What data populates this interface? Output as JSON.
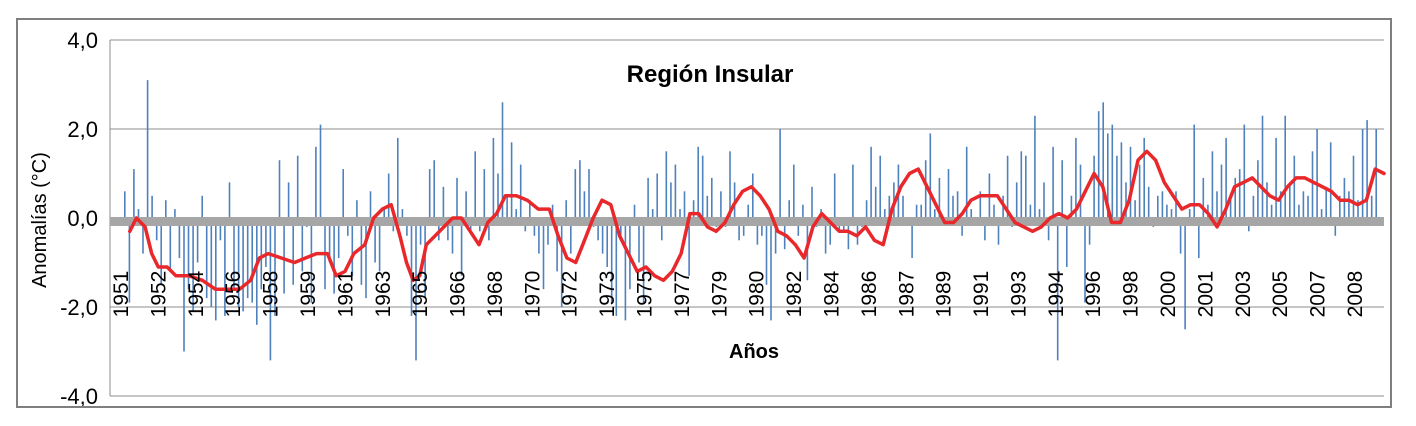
{
  "chart_data": {
    "type": "bar",
    "title": "Región Insular",
    "xlabel": "Años",
    "ylabel": "Anomalías (°C)",
    "ylim": [
      -4,
      4
    ],
    "y_ticks": [
      "4,0",
      "2,0",
      "0,0",
      "-2,0",
      "-4,0"
    ],
    "y_tick_values": [
      4,
      2,
      0,
      -2,
      -4
    ],
    "x_start_year": 1951,
    "x_end_year": 2009,
    "x_tick_labels": [
      "1951",
      "1952",
      "1954",
      "1956",
      "1958",
      "1959",
      "1961",
      "1963",
      "1965",
      "1966",
      "1968",
      "1970",
      "1972",
      "1973",
      "1975",
      "1977",
      "1979",
      "1980",
      "1982",
      "1984",
      "1986",
      "1987",
      "1989",
      "1991",
      "1993",
      "1994",
      "1996",
      "1998",
      "2000",
      "2001",
      "2003",
      "2005",
      "2007",
      "2008"
    ],
    "grid": true,
    "legend": "none",
    "series": [
      {
        "kind": "monthly bars",
        "color": "#4f81bd",
        "values": [
          0.6,
          -1.9,
          1.1,
          0.2,
          -0.8,
          3.1,
          0.5,
          -0.5,
          -1.5,
          0.4,
          -1.2,
          0.2,
          -0.9,
          -3.0,
          -1.6,
          -2.1,
          -1.0,
          0.5,
          -1.8,
          -2.0,
          -2.3,
          -0.5,
          -2.2,
          0.8,
          -1.6,
          -2.0,
          -2.1,
          -1.8,
          -1.9,
          -2.4,
          -1.6,
          -1.1,
          -3.2,
          -2.2,
          1.3,
          -1.7,
          0.8,
          -1.5,
          1.4,
          -1.2,
          -0.2,
          -1.9,
          1.6,
          2.1,
          -1.6,
          -1.0,
          -1.7,
          -0.9,
          1.1,
          -0.4,
          -1.3,
          0.4,
          -1.5,
          -1.8,
          0.6,
          -1.0,
          -1.2,
          0.2,
          1.0,
          -0.3,
          1.8,
          0.2,
          -0.4,
          -2.2,
          -3.2,
          -0.6,
          -1.8,
          1.1,
          1.3,
          -0.5,
          0.7,
          -0.5,
          -0.8,
          0.9,
          -1.3,
          0.6,
          -0.3,
          1.5,
          -0.3,
          1.1,
          -0.5,
          1.8,
          1.0,
          2.6,
          0.5,
          1.7,
          0.2,
          1.2,
          -0.3,
          0.4,
          -0.4,
          -0.8,
          -1.6,
          -0.6,
          0.3,
          -1.2,
          -2.0,
          0.4,
          -0.8,
          1.1,
          1.3,
          0.6,
          1.1,
          -0.2,
          -0.5,
          -0.8,
          -1.1,
          -1.9,
          -2.2,
          -0.4,
          -2.3,
          -1.6,
          0.3,
          -1.0,
          -1.9,
          0.9,
          0.2,
          1.0,
          -0.5,
          1.5,
          0.8,
          1.2,
          0.2,
          0.6,
          -1.3,
          0.4,
          1.6,
          1.4,
          0.5,
          0.9,
          -0.2,
          0.6,
          -0.2,
          1.5,
          0.8,
          -0.5,
          -0.4,
          0.3,
          1.0,
          -0.6,
          -0.4,
          -1.5,
          -2.3,
          -0.8,
          2.0,
          -0.7,
          0.4,
          1.2,
          -0.4,
          0.3,
          -1.4,
          0.7,
          -0.2,
          0.2,
          -0.8,
          -0.6,
          1.0,
          -0.3,
          -0.3,
          -0.7,
          1.2,
          -0.6,
          -0.2,
          0.4,
          1.6,
          0.7,
          1.4,
          0.2,
          0.5,
          0.8,
          1.2,
          0.5,
          -0.1,
          -0.9,
          0.3,
          0.3,
          1.3,
          1.9,
          0.2,
          0.9,
          -0.1,
          1.1,
          0.5,
          0.6,
          -0.4,
          1.6,
          0.2,
          -0.1,
          0.6,
          -0.5,
          1.0,
          0.3,
          -0.6,
          0.5,
          1.4,
          -0.2,
          0.8,
          1.5,
          1.4,
          0.3,
          2.3,
          0.2,
          0.8,
          -0.5,
          1.6,
          -3.2,
          1.3,
          -1.1,
          0.5,
          1.8,
          1.2,
          -1.9,
          -0.6,
          1.4,
          2.4,
          2.6,
          1.9,
          2.1,
          1.4,
          1.7,
          0.8,
          1.6,
          0.4,
          1.2,
          1.8,
          0.7,
          -0.2,
          0.5,
          0.6,
          0.3,
          0.2,
          0.6,
          -0.8,
          -2.5,
          0.2,
          2.1,
          -0.9,
          0.9,
          0.3,
          1.5,
          0.6,
          1.2,
          1.8,
          0.4,
          0.9,
          1.1,
          2.1,
          -0.3,
          0.5,
          1.3,
          2.3,
          0.8,
          0.3,
          1.8,
          0.6,
          2.3,
          0.8,
          1.4,
          0.3,
          0.6,
          0.5,
          1.5,
          2.0,
          0.2,
          0.7,
          1.7,
          -0.4,
          0.5,
          0.9,
          0.6,
          1.4,
          0.4,
          2.0,
          2.2,
          0.5,
          2.0
        ]
      },
      {
        "kind": "running mean",
        "color": "#e8282b",
        "x": [
          1951.9,
          1952.2,
          1952.6,
          1952.9,
          1953.2,
          1953.6,
          1954.0,
          1954.6,
          1955.2,
          1955.8,
          1956.3,
          1956.9,
          1957.4,
          1957.8,
          1958.2,
          1958.8,
          1959.4,
          1959.9,
          1960.4,
          1960.9,
          1961.3,
          1961.7,
          1962.1,
          1962.6,
          1963.0,
          1963.4,
          1963.8,
          1964.2,
          1964.5,
          1964.8,
          1965.1,
          1965.4,
          1965.8,
          1966.2,
          1966.6,
          1967.0,
          1967.4,
          1967.8,
          1968.2,
          1968.6,
          1969.0,
          1969.5,
          1970.0,
          1970.5,
          1971.0,
          1971.4,
          1971.8,
          1972.2,
          1972.6,
          1973.0,
          1973.4,
          1973.8,
          1974.2,
          1974.6,
          1975.0,
          1975.4,
          1975.8,
          1976.2,
          1976.6,
          1977.0,
          1977.4,
          1977.8,
          1978.2,
          1978.6,
          1979.0,
          1979.4,
          1979.8,
          1980.2,
          1980.6,
          1981.0,
          1981.4,
          1981.8,
          1982.2,
          1982.6,
          1983.0,
          1983.4,
          1983.8,
          1984.2,
          1984.6,
          1985.0,
          1985.4,
          1985.8,
          1986.2,
          1986.6,
          1987.0,
          1987.4,
          1987.8,
          1988.2,
          1988.6,
          1989.0,
          1989.4,
          1989.8,
          1990.2,
          1990.6,
          1991.0,
          1991.4,
          1991.8,
          1992.2,
          1992.6,
          1993.0,
          1993.4,
          1993.8,
          1994.2,
          1994.6,
          1995.0,
          1995.4,
          1995.8,
          1996.2,
          1996.6,
          1997.0,
          1997.4,
          1997.8,
          1998.2,
          1998.6,
          1999.0,
          1999.4,
          1999.8,
          2000.2,
          2000.6,
          2001.0,
          2001.4,
          2001.8,
          2002.2,
          2002.6,
          2003.0,
          2003.4,
          2003.8,
          2004.2,
          2004.6,
          2005.0,
          2005.4,
          2005.8,
          2006.2,
          2006.6,
          2007.0,
          2007.4,
          2007.8,
          2008.2,
          2008.6,
          2009.0
        ],
        "values": [
          -0.3,
          0.0,
          -0.2,
          -0.8,
          -1.1,
          -1.1,
          -1.3,
          -1.3,
          -1.4,
          -1.6,
          -1.6,
          -1.6,
          -1.4,
          -0.9,
          -0.8,
          -0.9,
          -1.0,
          -0.9,
          -0.8,
          -0.8,
          -1.3,
          -1.2,
          -0.8,
          -0.6,
          0.0,
          0.2,
          0.3,
          -0.4,
          -1.0,
          -1.4,
          -1.3,
          -0.6,
          -0.4,
          -0.2,
          0.0,
          0.0,
          -0.3,
          -0.6,
          -0.1,
          0.1,
          0.5,
          0.5,
          0.4,
          0.2,
          0.2,
          -0.4,
          -0.9,
          -1.0,
          -0.5,
          0.0,
          0.4,
          0.3,
          -0.4,
          -0.8,
          -1.2,
          -1.1,
          -1.3,
          -1.4,
          -1.2,
          -0.8,
          0.1,
          0.1,
          -0.2,
          -0.3,
          -0.1,
          0.3,
          0.6,
          0.7,
          0.5,
          0.2,
          -0.3,
          -0.4,
          -0.6,
          -0.9,
          -0.2,
          0.1,
          -0.1,
          -0.3,
          -0.3,
          -0.4,
          -0.2,
          -0.5,
          -0.6,
          0.2,
          0.7,
          1.0,
          1.1,
          0.7,
          0.3,
          -0.1,
          -0.1,
          0.1,
          0.4,
          0.5,
          0.5,
          0.5,
          0.2,
          -0.1,
          -0.2,
          -0.3,
          -0.2,
          0.0,
          0.1,
          0.0,
          0.2,
          0.6,
          1.0,
          0.7,
          -0.1,
          -0.1,
          0.4,
          1.3,
          1.5,
          1.3,
          0.8,
          0.5,
          0.2,
          0.3,
          0.3,
          0.1,
          -0.2,
          0.2,
          0.7,
          0.8,
          0.9,
          0.7,
          0.5,
          0.4,
          0.7,
          0.9,
          0.9,
          0.8,
          0.7,
          0.6,
          0.4,
          0.4,
          0.3,
          0.4,
          1.1,
          1.0
        ]
      }
    ]
  }
}
